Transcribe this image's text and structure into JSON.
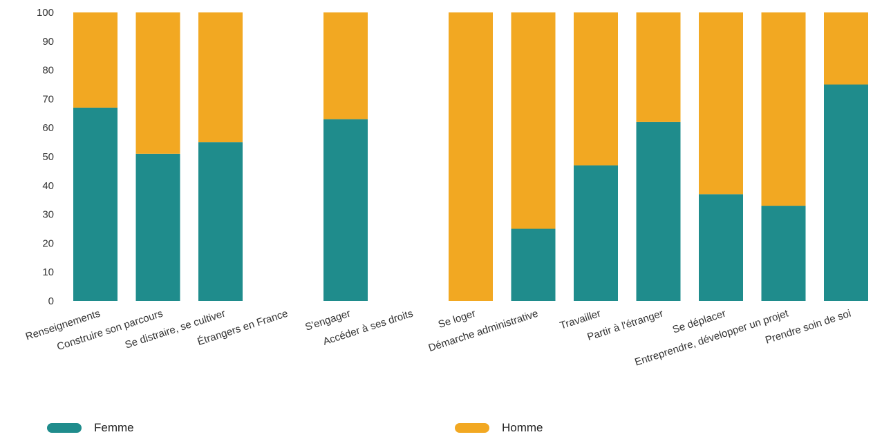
{
  "chart_data": {
    "type": "bar",
    "stacked": true,
    "title": "",
    "xlabel": "",
    "ylabel": "",
    "ylim": [
      0,
      100
    ],
    "yticks": [
      0,
      10,
      20,
      30,
      40,
      50,
      60,
      70,
      80,
      90,
      100
    ],
    "grid": false,
    "legend_position": "bottom",
    "categories": [
      "Renseignements",
      "Construire son parcours",
      "Se distraire, se cultiver",
      "Étrangers en France",
      "S'engager",
      "Accéder à ses droits",
      "Se loger",
      "Démarche administrative",
      "Travailler",
      "Partir à l'étranger",
      "Se déplacer",
      "Entreprendre, développer un projet",
      "Prendre soin de soi"
    ],
    "series": [
      {
        "name": "Femme",
        "color": "#1f8c8c",
        "values": [
          67,
          51,
          55,
          null,
          63,
          null,
          0,
          25,
          47,
          62,
          37,
          33,
          75
        ]
      },
      {
        "name": "Homme",
        "color": "#f2a822",
        "values": [
          33,
          49,
          45,
          null,
          37,
          null,
          100,
          75,
          53,
          38,
          63,
          67,
          25
        ]
      }
    ]
  },
  "legend": {
    "femme": {
      "label": "Femme",
      "color": "#1f8c8c"
    },
    "homme": {
      "label": "Homme",
      "color": "#f2a822"
    }
  }
}
